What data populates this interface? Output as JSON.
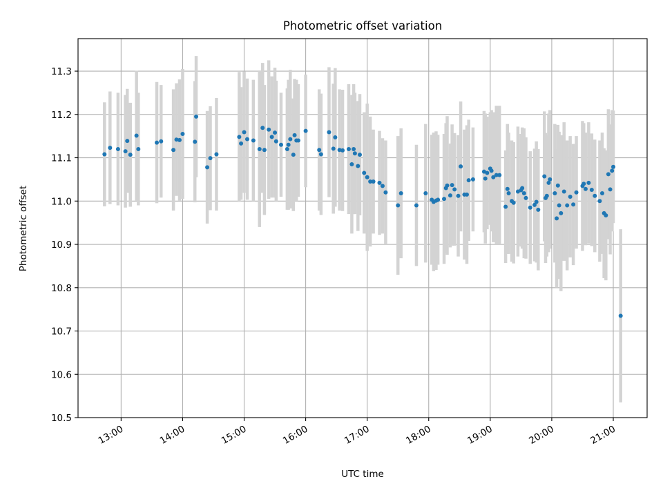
{
  "chart_data": {
    "type": "scatter",
    "title": "Photometric offset variation",
    "xlabel": "UTC time",
    "ylabel": "Photometric offset",
    "ylim": [
      10.5,
      11.375
    ],
    "xlim": [
      12.3,
      21.55
    ],
    "grid": true,
    "y_ticks": [
      10.5,
      10.6,
      10.7,
      10.8,
      10.9,
      11.0,
      11.1,
      11.2,
      11.3
    ],
    "y_tick_labels": [
      "10.5",
      "10.6",
      "10.7",
      "10.8",
      "10.9",
      "11.0",
      "11.1",
      "11.2",
      "11.3"
    ],
    "x_ticks": [
      13,
      14,
      15,
      16,
      17,
      18,
      19,
      20,
      21
    ],
    "x_tick_labels": [
      "13:00",
      "14:00",
      "15:00",
      "16:00",
      "17:00",
      "18:00",
      "19:00",
      "20:00",
      "21:00"
    ],
    "colors": {
      "point": "#1f77b4",
      "errorbar": "#d3d3d3",
      "grid": "#b0b0b0"
    },
    "series": [
      {
        "name": "Photometric offset",
        "x_hours": [
          12.73,
          12.82,
          12.95,
          13.07,
          13.1,
          13.15,
          13.25,
          13.28,
          13.58,
          13.65,
          13.85,
          13.9,
          13.95,
          14.0,
          14.2,
          14.22,
          14.4,
          14.45,
          14.55,
          14.92,
          14.95,
          15.0,
          15.05,
          15.15,
          15.25,
          15.3,
          15.33,
          15.4,
          15.45,
          15.5,
          15.52,
          15.6,
          15.7,
          15.72,
          15.75,
          15.8,
          15.82,
          15.85,
          15.88,
          16.0,
          16.22,
          16.25,
          16.38,
          16.45,
          16.48,
          16.55,
          16.6,
          16.7,
          16.75,
          16.78,
          16.8,
          16.85,
          16.88,
          16.95,
          17.0,
          17.05,
          17.1,
          17.2,
          17.25,
          17.3,
          17.5,
          17.55,
          17.8,
          17.95,
          18.05,
          18.08,
          18.12,
          18.15,
          18.25,
          18.28,
          18.3,
          18.35,
          18.38,
          18.42,
          18.48,
          18.52,
          18.58,
          18.62,
          18.65,
          18.72,
          18.9,
          18.92,
          18.95,
          19.0,
          19.02,
          19.05,
          19.1,
          19.15,
          19.25,
          19.28,
          19.3,
          19.35,
          19.38,
          19.45,
          19.5,
          19.52,
          19.55,
          19.58,
          19.65,
          19.72,
          19.75,
          19.78,
          19.88,
          19.9,
          19.92,
          19.95,
          19.97,
          20.05,
          20.08,
          20.1,
          20.12,
          20.15,
          20.2,
          20.25,
          20.3,
          20.35,
          20.4,
          20.5,
          20.52,
          20.55,
          20.6,
          20.65,
          20.7,
          20.78,
          20.82,
          20.85,
          20.88,
          20.92,
          20.95,
          20.98,
          21.0,
          21.12
        ],
        "y": [
          11.108,
          11.123,
          11.12,
          11.115,
          11.139,
          11.107,
          11.151,
          11.12,
          11.135,
          11.138,
          11.118,
          11.142,
          11.141,
          11.155,
          11.137,
          11.195,
          11.078,
          11.099,
          11.108,
          11.148,
          11.133,
          11.159,
          11.143,
          11.14,
          11.12,
          11.169,
          11.118,
          11.165,
          11.148,
          11.158,
          11.138,
          11.13,
          11.12,
          11.13,
          11.143,
          11.107,
          11.152,
          11.14,
          11.14,
          11.162,
          11.118,
          11.108,
          11.159,
          11.121,
          11.147,
          11.118,
          11.117,
          11.12,
          11.085,
          11.12,
          11.11,
          11.081,
          11.107,
          11.065,
          11.055,
          11.045,
          11.045,
          11.042,
          11.035,
          11.02,
          10.99,
          11.018,
          10.99,
          11.018,
          11.003,
          10.998,
          11.001,
          11.003,
          11.005,
          11.03,
          11.036,
          11.013,
          11.037,
          11.027,
          11.012,
          11.08,
          11.015,
          11.015,
          11.048,
          11.05,
          11.068,
          11.052,
          11.065,
          11.075,
          11.07,
          11.055,
          11.06,
          11.06,
          10.987,
          11.028,
          11.018,
          11.0,
          10.996,
          11.022,
          11.025,
          11.03,
          11.018,
          11.007,
          10.985,
          10.991,
          10.998,
          10.98,
          11.057,
          11.007,
          11.012,
          11.042,
          11.05,
          11.018,
          10.96,
          11.036,
          10.99,
          10.972,
          11.022,
          10.99,
          11.01,
          10.992,
          11.02,
          11.035,
          11.04,
          11.028,
          11.042,
          11.026,
          11.012,
          11.0,
          11.018,
          10.972,
          10.967,
          11.062,
          11.027,
          11.07,
          11.079,
          10.735
        ],
        "err": [
          0.12,
          0.13,
          0.13,
          0.13,
          0.12,
          0.12,
          0.15,
          0.13,
          0.14,
          0.13,
          0.14,
          0.13,
          0.14,
          0.15,
          0.14,
          0.14,
          0.13,
          0.12,
          0.13,
          0.15,
          0.13,
          0.14,
          0.14,
          0.14,
          0.18,
          0.15,
          0.15,
          0.16,
          0.14,
          0.15,
          0.14,
          0.12,
          0.14,
          0.15,
          0.16,
          0.13,
          0.13,
          0.14,
          0.13,
          0.13,
          0.14,
          0.14,
          0.15,
          0.15,
          0.16,
          0.14,
          0.14,
          0.15,
          0.16,
          0.15,
          0.14,
          0.15,
          0.14,
          0.14,
          0.17,
          0.15,
          0.12,
          0.12,
          0.11,
          0.12,
          0.16,
          0.15,
          0.14,
          0.16,
          0.15,
          0.16,
          0.16,
          0.15,
          0.15,
          0.15,
          0.16,
          0.12,
          0.14,
          0.13,
          0.14,
          0.15,
          0.15,
          0.16,
          0.14,
          0.12,
          0.14,
          0.15,
          0.13,
          0.13,
          0.14,
          0.15,
          0.16,
          0.16,
          0.13,
          0.15,
          0.14,
          0.14,
          0.14,
          0.15,
          0.13,
          0.14,
          0.15,
          0.14,
          0.13,
          0.13,
          0.14,
          0.14,
          0.15,
          0.15,
          0.14,
          0.16,
          0.16,
          0.16,
          0.16,
          0.14,
          0.17,
          0.18,
          0.16,
          0.15,
          0.14,
          0.14,
          0.13,
          0.15,
          0.14,
          0.13,
          0.14,
          0.13,
          0.13,
          0.14,
          0.14,
          0.15,
          0.15,
          0.15,
          0.15,
          0.14,
          0.13,
          0.2
        ]
      }
    ]
  }
}
